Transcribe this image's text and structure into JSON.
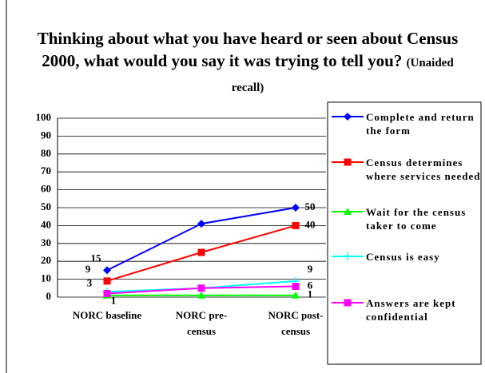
{
  "chart_data": {
    "type": "line",
    "title": "Thinking about what you have heard or seen about Census 2000, what would you say it was trying to tell you?",
    "subtitle": "(Unaided recall)",
    "categories": [
      "NORC baseline",
      "NORC pre-census",
      "NORC post-census"
    ],
    "series": [
      {
        "name": "Complete and return the form",
        "color": "#0000ff",
        "marker": "diamond",
        "values": [
          15,
          41,
          50
        ],
        "value_labels": [
          "15",
          null,
          "50"
        ]
      },
      {
        "name": "Census determines where services needed",
        "color": "#ff0000",
        "marker": "square",
        "values": [
          9,
          25,
          40
        ],
        "value_labels": [
          "9",
          null,
          "40"
        ]
      },
      {
        "name": "Wait for the census taker to come",
        "color": "#00ff00",
        "marker": "triangle",
        "values": [
          1,
          1,
          1
        ],
        "value_labels": [
          "1",
          null,
          "1"
        ]
      },
      {
        "name": "Census is easy",
        "color": "#00ffff",
        "marker": "cross",
        "values": [
          3,
          5,
          9
        ],
        "value_labels": [
          "3",
          null,
          "9"
        ]
      },
      {
        "name": "Answers are kept confidential",
        "color": "#ff00ff",
        "marker": "square",
        "values": [
          2,
          5,
          6
        ],
        "value_labels": [
          null,
          null,
          "6"
        ]
      }
    ],
    "ylim": [
      0,
      100
    ],
    "yticks": [
      0,
      10,
      20,
      30,
      40,
      50,
      60,
      70,
      80,
      90,
      100
    ],
    "grid": true,
    "legend": "right"
  }
}
